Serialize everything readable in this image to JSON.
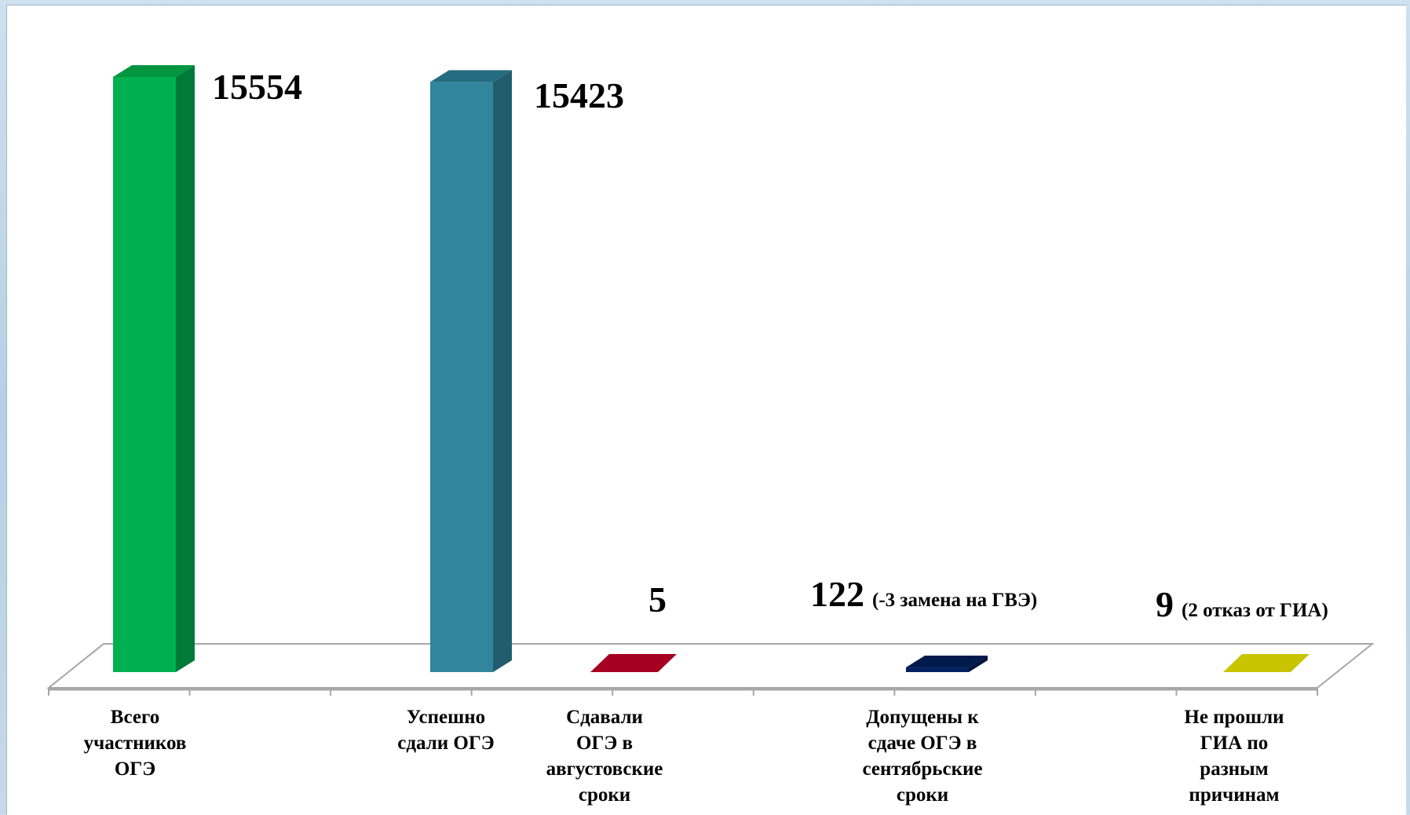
{
  "chart_data": {
    "type": "bar",
    "title": "",
    "xlabel": "",
    "ylabel": "",
    "ylim": [
      0,
      17500
    ],
    "grid": false,
    "legend": "none",
    "categories": [
      "Всего участников ОГЭ",
      "Успешно сдали ОГЭ",
      "Сдавали ОГЭ в августовские сроки",
      "Допущены к сдаче ОГЭ в сентябрьские сроки",
      "Не прошли ГИА по разным причинам"
    ],
    "category_lines": [
      [
        "Всего",
        "участников",
        "ОГЭ"
      ],
      [
        "Успешно",
        "сдали ОГЭ"
      ],
      [
        "Сдавали",
        "ОГЭ в",
        "августовские",
        "сроки"
      ],
      [
        "Допущены к",
        "сдаче ОГЭ в",
        "сентябрьские",
        "сроки"
      ],
      [
        "Не прошли",
        "ГИА по",
        "разным",
        "причинам"
      ]
    ],
    "values": [
      15554,
      15423,
      5,
      122,
      9
    ],
    "value_labels": [
      "15554",
      "15423",
      "5",
      "122",
      "9"
    ],
    "value_notes": [
      "",
      "",
      "",
      "(-3 замена на ГВЭ)",
      "(2 отказ от ГИА)"
    ],
    "colors": [
      "#00b050",
      "#31859c",
      "#a50021",
      "#002060",
      "#c9c400"
    ],
    "side_colors": [
      "#007a38",
      "#215d6d",
      "#6e0016",
      "#001540",
      "#8d8900"
    ],
    "top_colors": [
      "#00953f",
      "#266c80",
      "#8a001b",
      "#001a4d",
      "#aaa500"
    ]
  }
}
